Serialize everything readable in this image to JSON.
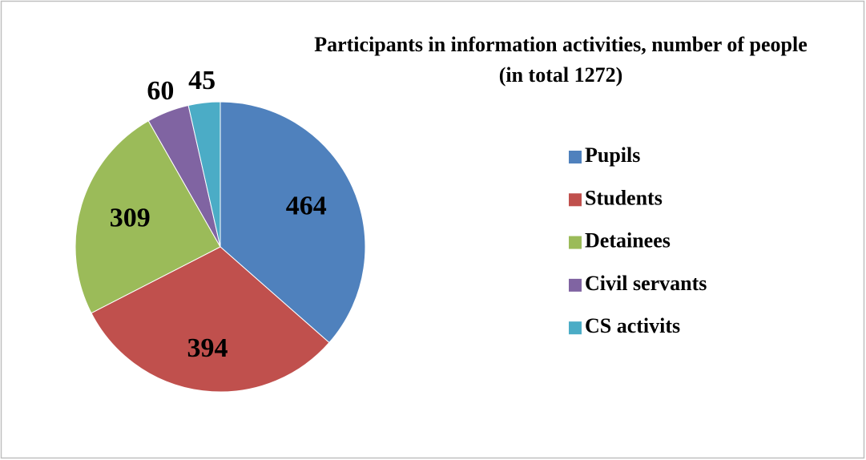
{
  "chart_data": {
    "type": "pie",
    "title": "Participants in information activities, number of people",
    "subtitle": "(in total 1272)",
    "categories": [
      "Pupils",
      "Students",
      "Detainees",
      "Civil servants",
      "CS activits"
    ],
    "values": [
      464,
      394,
      309,
      60,
      45
    ],
    "colors": [
      "#4f81bd",
      "#c0504d",
      "#9bbb59",
      "#8064a2",
      "#4bacc6"
    ],
    "legend": "right"
  }
}
